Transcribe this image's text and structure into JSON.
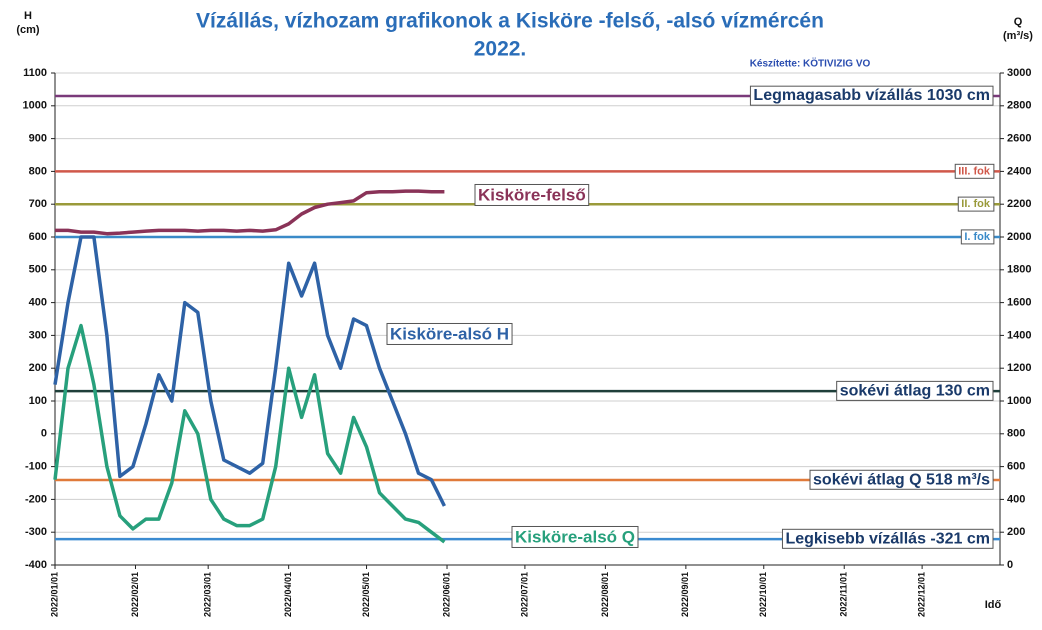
{
  "chart_data": {
    "type": "line",
    "title": "Vízállás, vízhozam grafikonok a Kisköre -felső, -alsó vízmércén",
    "subtitle": "2022.",
    "credit": "Készítette: KÖTIVIZIG VO",
    "ylabel": [
      "H",
      "(cm)"
    ],
    "y2label": [
      "Q",
      "(m³/s)"
    ],
    "xlabel": "Idő",
    "x": [
      "2022/01/01",
      "2022/01/06",
      "2022/01/11",
      "2022/01/16",
      "2022/01/21",
      "2022/01/26",
      "2022/01/31",
      "2022/02/05",
      "2022/02/10",
      "2022/02/15",
      "2022/02/20",
      "2022/02/25",
      "2022/03/02",
      "2022/03/07",
      "2022/03/12",
      "2022/03/17",
      "2022/03/22",
      "2022/03/27",
      "2022/04/01",
      "2022/04/06",
      "2022/04/11",
      "2022/04/16",
      "2022/04/21",
      "2022/04/26",
      "2022/05/01",
      "2022/05/06",
      "2022/05/11",
      "2022/05/16",
      "2022/05/21",
      "2022/05/26",
      "2022/05/31"
    ],
    "xlim": [
      "2022/01/01",
      "2022/12/31"
    ],
    "xticks": [
      "2022/01/01",
      "2022/02/01",
      "2022/03/01",
      "2022/04/01",
      "2022/05/01",
      "2022/06/01",
      "2022/07/01",
      "2022/08/01",
      "2022/09/01",
      "2022/10/01",
      "2022/11/01",
      "2022/12/01"
    ],
    "ylim": [
      -400,
      1100
    ],
    "yticks": [
      -400,
      -300,
      -200,
      -100,
      0,
      100,
      200,
      300,
      400,
      500,
      600,
      700,
      800,
      900,
      1000,
      1100
    ],
    "y2lim": [
      0,
      3000
    ],
    "y2ticks": [
      0,
      200,
      400,
      600,
      800,
      1000,
      1200,
      1400,
      1600,
      1800,
      2000,
      2200,
      2400,
      2600,
      2800,
      3000
    ],
    "grid": true,
    "series": [
      {
        "name": "Kisköre-felső",
        "color": "#8a3358",
        "values": [
          620,
          620,
          615,
          615,
          610,
          612,
          615,
          618,
          620,
          620,
          620,
          618,
          620,
          620,
          618,
          620,
          618,
          622,
          640,
          670,
          690,
          700,
          705,
          710,
          735,
          738,
          738,
          740,
          740,
          738,
          738
        ]
      },
      {
        "name": "Kisköre-alsó H",
        "color": "#2e62a6",
        "values": [
          150,
          400,
          600,
          600,
          300,
          -130,
          -100,
          30,
          180,
          100,
          400,
          370,
          100,
          -80,
          -100,
          -120,
          -90,
          200,
          520,
          420,
          520,
          300,
          200,
          350,
          330,
          200,
          100,
          0,
          -120,
          -140,
          -220
        ]
      },
      {
        "name": "Kisköre-alsó Q",
        "color": "#27a07c",
        "axis": "y2",
        "values": [
          520,
          1200,
          1460,
          1100,
          600,
          300,
          220,
          280,
          280,
          500,
          940,
          800,
          400,
          280,
          240,
          240,
          280,
          600,
          1200,
          900,
          1160,
          680,
          560,
          900,
          720,
          440,
          360,
          280,
          260,
          200,
          140
        ]
      }
    ],
    "reference_lines": [
      {
        "label": "Legmagasabb vízállás 1030 cm",
        "value": 1030,
        "color": "#7a3a7a"
      },
      {
        "label": "III. fok",
        "value": 800,
        "color": "#d0584a"
      },
      {
        "label": "II. fok",
        "value": 700,
        "color": "#9a9a3a"
      },
      {
        "label": "I. fok",
        "value": 600,
        "color": "#3a8ac8"
      },
      {
        "label": "sokévi átlag 130 cm",
        "value": 130,
        "color": "#1f3f3a"
      },
      {
        "label": "sokévi átlag Q 518 m³/s",
        "value": 518,
        "color": "#e07a3a",
        "axis": "y2"
      },
      {
        "label": "Legkisebb vízállás -321 cm",
        "value": -321,
        "color": "#3a8ad0"
      }
    ]
  }
}
